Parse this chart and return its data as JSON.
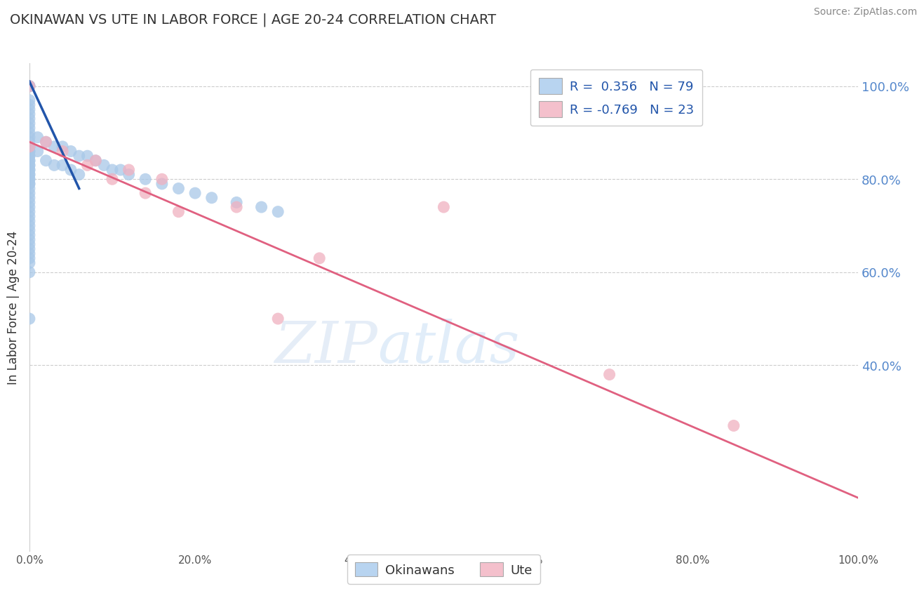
{
  "title": "OKINAWAN VS UTE IN LABOR FORCE | AGE 20-24 CORRELATION CHART",
  "source_text": "Source: ZipAtlas.com",
  "ylabel": "In Labor Force | Age 20-24",
  "xlim": [
    0.0,
    1.0
  ],
  "ylim": [
    0.0,
    1.05
  ],
  "xtick_labels": [
    "0.0%",
    "20.0%",
    "40.0%",
    "60.0%",
    "80.0%",
    "100.0%"
  ],
  "xtick_vals": [
    0.0,
    0.2,
    0.4,
    0.6,
    0.8,
    1.0
  ],
  "right_ytick_labels": [
    "40.0%",
    "60.0%",
    "80.0%",
    "100.0%"
  ],
  "right_ytick_vals": [
    0.4,
    0.6,
    0.8,
    1.0
  ],
  "grid_lines": [
    0.4,
    0.6,
    0.8,
    1.0
  ],
  "blue_R": 0.356,
  "blue_N": 79,
  "pink_R": -0.769,
  "pink_N": 23,
  "blue_color": "#a8c8e8",
  "pink_color": "#f0b0c0",
  "blue_line_color": "#2255aa",
  "pink_line_color": "#e06080",
  "legend_blue_fill": "#b8d4f0",
  "legend_pink_fill": "#f4c0cc",
  "blue_scatter_x": [
    0.0,
    0.0,
    0.0,
    0.0,
    0.0,
    0.0,
    0.0,
    0.0,
    0.0,
    0.0,
    0.0,
    0.0,
    0.0,
    0.0,
    0.0,
    0.0,
    0.0,
    0.0,
    0.0,
    0.0,
    0.0,
    0.0,
    0.0,
    0.0,
    0.0,
    0.0,
    0.0,
    0.0,
    0.0,
    0.0,
    0.0,
    0.0,
    0.0,
    0.0,
    0.0,
    0.0,
    0.0,
    0.0,
    0.0,
    0.0,
    0.0,
    0.0,
    0.0,
    0.0,
    0.0,
    0.0,
    0.0,
    0.0,
    0.0,
    0.0
  ],
  "blue_scatter_y": [
    1.0,
    1.0,
    1.0,
    0.97,
    0.96,
    0.95,
    0.94,
    0.93,
    0.92,
    0.91,
    0.9,
    0.89,
    0.88,
    0.87,
    0.87,
    0.86,
    0.86,
    0.85,
    0.85,
    0.84,
    0.84,
    0.83,
    0.83,
    0.82,
    0.82,
    0.81,
    0.81,
    0.8,
    0.8,
    0.79,
    0.79,
    0.78,
    0.77,
    0.76,
    0.75,
    0.74,
    0.73,
    0.72,
    0.71,
    0.7,
    0.69,
    0.68,
    0.67,
    0.66,
    0.65,
    0.64,
    0.63,
    0.62,
    0.6,
    0.5
  ],
  "blue_scatter_x2": [
    0.01,
    0.01,
    0.02,
    0.02,
    0.03,
    0.03,
    0.04,
    0.04,
    0.05,
    0.05,
    0.06,
    0.06,
    0.07,
    0.08,
    0.09,
    0.1,
    0.11,
    0.12,
    0.14,
    0.16,
    0.18,
    0.2,
    0.22,
    0.25,
    0.28,
    0.3
  ],
  "blue_scatter_y2": [
    0.89,
    0.86,
    0.88,
    0.84,
    0.87,
    0.83,
    0.87,
    0.83,
    0.86,
    0.82,
    0.85,
    0.81,
    0.85,
    0.84,
    0.83,
    0.82,
    0.82,
    0.81,
    0.8,
    0.79,
    0.78,
    0.77,
    0.76,
    0.75,
    0.74,
    0.73
  ],
  "pink_scatter_x": [
    0.0,
    0.0,
    0.02,
    0.04,
    0.07,
    0.08,
    0.1,
    0.12,
    0.14,
    0.16,
    0.18,
    0.25,
    0.3,
    0.35,
    0.5,
    0.7,
    0.85
  ],
  "pink_scatter_y": [
    1.0,
    0.87,
    0.88,
    0.86,
    0.83,
    0.84,
    0.8,
    0.82,
    0.77,
    0.8,
    0.73,
    0.74,
    0.5,
    0.63,
    0.74,
    0.38,
    0.27
  ],
  "blue_trendline_x": [
    0.0,
    0.06
  ],
  "blue_trendline_y": [
    1.01,
    0.78
  ],
  "pink_trendline_x": [
    0.0,
    1.0
  ],
  "pink_trendline_y": [
    0.88,
    0.115
  ],
  "bottom_legend": [
    "Okinawans",
    "Ute"
  ]
}
